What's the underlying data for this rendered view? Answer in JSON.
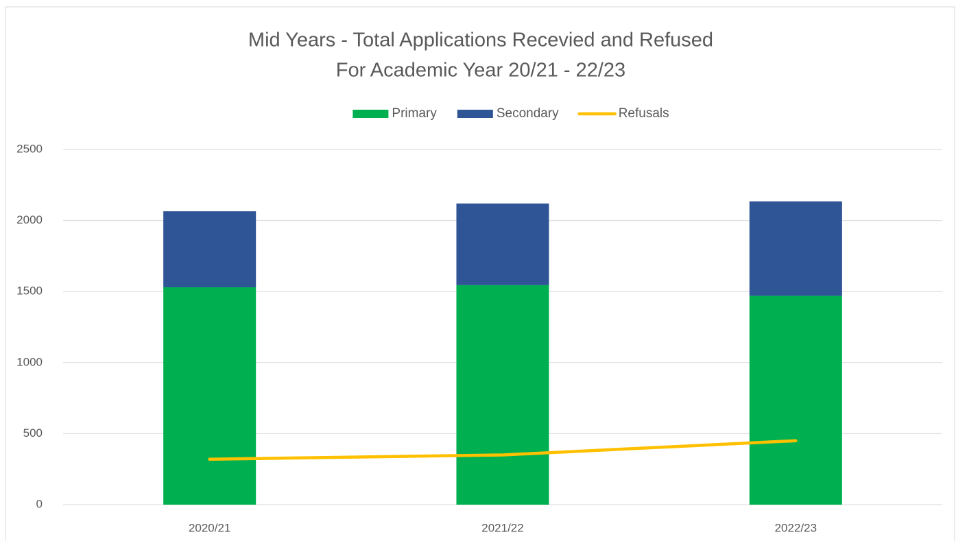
{
  "chart_data": {
    "type": "bar",
    "stacked": true,
    "title": [
      "Mid Years - Total Applications Recevied and Refused",
      "For Academic Year 20/21 - 22/23"
    ],
    "categories": [
      "2020/21",
      "2021/22",
      "2022/23"
    ],
    "series": [
      {
        "name": "Primary",
        "color": "#00b050",
        "type": "bar",
        "values": [
          1530,
          1545,
          1470
        ]
      },
      {
        "name": "Secondary",
        "color": "#2f5597",
        "type": "bar",
        "values": [
          535,
          575,
          665
        ]
      },
      {
        "name": "Refusals",
        "color": "#ffc000",
        "type": "line",
        "values": [
          320,
          350,
          450
        ]
      }
    ],
    "ylim": [
      0,
      2500
    ],
    "yticks": [
      0,
      500,
      1000,
      1500,
      2000,
      2500
    ],
    "grid": true,
    "legend": "top"
  }
}
